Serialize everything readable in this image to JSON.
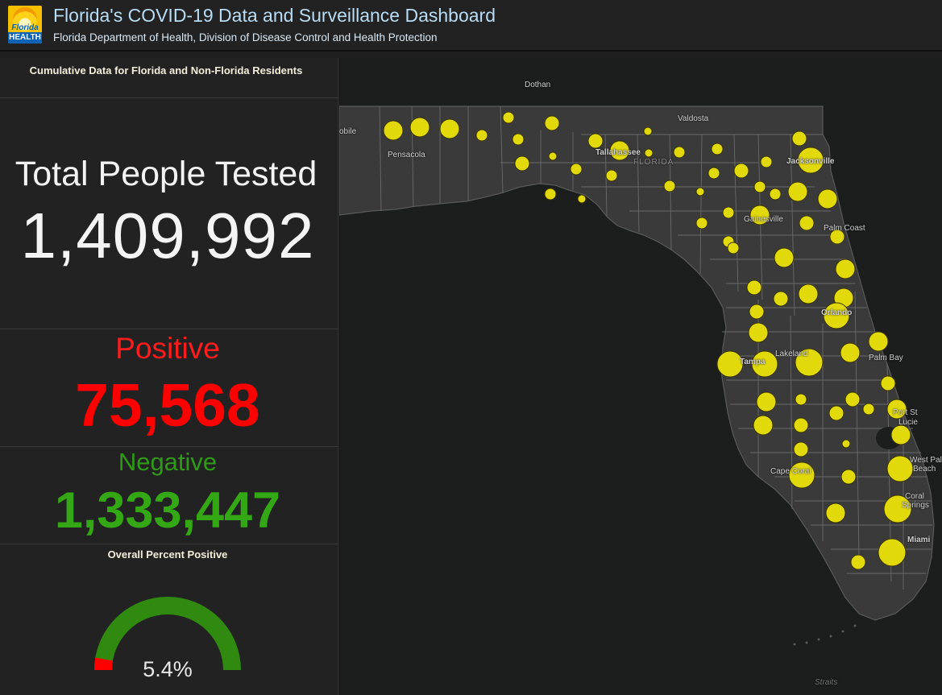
{
  "header": {
    "title": "Florida's COVID-19 Data and Surveillance Dashboard",
    "subtitle": "Florida Department of Health, Division of Disease Control and Health Protection",
    "logo_line1": "Florida",
    "logo_line2": "HEALTH"
  },
  "panel": {
    "cumulative_label": "Cumulative Data for Florida and Non-Florida Residents",
    "tested_label": "Total People Tested",
    "tested_value": "1,409,992",
    "positive_label": "Positive",
    "positive_value": "75,568",
    "negative_label": "Negative",
    "negative_value": "1,333,447",
    "percent_label": "Overall Percent Positive",
    "percent_value": "5.4%",
    "percent_fraction": 0.054
  },
  "colors": {
    "positive": "#ff0000",
    "negative": "#33a814",
    "bubble": "#e1d90a",
    "title": "#b8dcf4"
  },
  "map": {
    "cities": {
      "dothan": "Dothan",
      "valdosta": "Valdosta",
      "mobile": "obile",
      "pensacola": "Pensacola",
      "tallahassee": "Tallahassee",
      "florida": "FLORIDA",
      "jacksonville": "Jacksonville",
      "gainesville": "Gainesville",
      "palm_coast": "Palm Coast",
      "orlando": "Orlando",
      "palm_bay": "Palm Bay",
      "lakeland": "Lakeland",
      "tampa": "Tampa",
      "port_st_lucie_1": "Port St",
      "port_st_lucie_2": "Lucie",
      "west_palm_1": "West Pal",
      "west_palm_2": "Beach",
      "cape_coral": "Cape Coral",
      "coral_springs_1": "Coral",
      "coral_springs_2": "Springs",
      "miami": "Miami",
      "straits": "Straits"
    }
  }
}
